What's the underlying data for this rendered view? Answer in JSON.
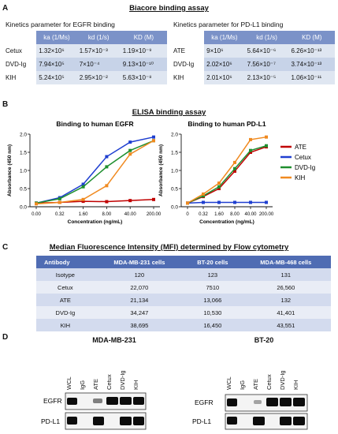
{
  "panel_a": {
    "label": "A",
    "title": "Biacore binding assay",
    "egfr_table": {
      "title": "Kinetics parameter for EGFR binding",
      "columns": [
        "ka (1/Ms)",
        "kd (1/s)",
        "KD (M)"
      ],
      "rows": [
        {
          "name": "Cetux",
          "values": [
            "1.32×10⁶",
            "1.57×10⁻³",
            "1.19×10⁻⁹"
          ]
        },
        {
          "name": "DVD-Ig",
          "values": [
            "7.94×10⁵",
            "7×10⁻⁴",
            "9.13×10⁻¹⁰"
          ]
        },
        {
          "name": "KIH",
          "values": [
            "5.24×10⁵",
            "2.95×10⁻²",
            "5.63×10⁻⁸"
          ]
        }
      ]
    },
    "pdl1_table": {
      "title": "Kinetics parameter for PD-L1 binding",
      "columns": [
        "ka (1/Ms)",
        "kd (1/s)",
        "KD (M)"
      ],
      "rows": [
        {
          "name": "ATE",
          "values": [
            "9×10⁶",
            "5.64×10⁻⁶",
            "6.26×10⁻¹³"
          ]
        },
        {
          "name": "DVD-Ig",
          "values": [
            "2.02×10⁶",
            "7.56×10⁻⁷",
            "3.74×10⁻¹³"
          ]
        },
        {
          "name": "KIH",
          "values": [
            "2.01×10⁶",
            "2.13×10⁻⁵",
            "1.06×10⁻¹¹"
          ]
        }
      ]
    }
  },
  "panel_b": {
    "label": "B",
    "title": "ELISA binding assay",
    "legend": [
      "ATE",
      "Cetux",
      "DVD-Ig",
      "KIH"
    ]
  },
  "chart_data": [
    {
      "type": "line",
      "title": "Binding to human EGFR",
      "xlabel": "Concentration (ng/mL)",
      "ylabel": "Absorbance (450 nm)",
      "categories": [
        "0.00",
        "0.32",
        "1.60",
        "8.00",
        "40.00",
        "200.00"
      ],
      "ylim": [
        0.0,
        2.0
      ],
      "yticks": [
        "0.0",
        "0.5",
        "1.0",
        "1.5",
        "2.0"
      ],
      "series": [
        {
          "name": "ATE",
          "color": "#c00000",
          "values": [
            0.1,
            0.12,
            0.15,
            0.14,
            0.17,
            0.2
          ]
        },
        {
          "name": "Cetux",
          "color": "#1f3fd0",
          "values": [
            0.1,
            0.25,
            0.62,
            1.38,
            1.78,
            1.92
          ]
        },
        {
          "name": "DVD-Ig",
          "color": "#1f8f2f",
          "values": [
            0.1,
            0.22,
            0.55,
            1.1,
            1.55,
            1.82
          ]
        },
        {
          "name": "KIH",
          "color": "#f08a20",
          "values": [
            0.08,
            0.12,
            0.2,
            0.58,
            1.45,
            1.82
          ]
        }
      ]
    },
    {
      "type": "line",
      "title": "Binding to human PD-L1",
      "xlabel": "Concentration (ng/mL)",
      "ylabel": "Absorbance (450 nm)",
      "categories": [
        "0",
        "0.32",
        "1.60",
        "8.00",
        "40.00",
        "200.00"
      ],
      "ylim": [
        0.0,
        2.0
      ],
      "yticks": [
        "0.0",
        "0.5",
        "1.0",
        "1.5",
        "2.0"
      ],
      "series": [
        {
          "name": "ATE",
          "color": "#c00000",
          "values": [
            0.1,
            0.28,
            0.5,
            0.98,
            1.5,
            1.65
          ]
        },
        {
          "name": "Cetux",
          "color": "#1f3fd0",
          "values": [
            0.1,
            0.12,
            0.12,
            0.12,
            0.12,
            0.12
          ]
        },
        {
          "name": "DVD-Ig",
          "color": "#1f8f2f",
          "values": [
            0.1,
            0.3,
            0.55,
            1.05,
            1.55,
            1.68
          ]
        },
        {
          "name": "KIH",
          "color": "#f08a20",
          "values": [
            0.1,
            0.35,
            0.65,
            1.22,
            1.85,
            1.92
          ]
        }
      ]
    }
  ],
  "panel_c": {
    "label": "C",
    "title": "Median Fluorescence Intensity (MFI) determined by Flow cytometry",
    "columns": [
      "Antibody",
      "MDA-MB-231 cells",
      "BT-20 cells",
      "MDA-MB-468 cells"
    ],
    "rows": [
      [
        "Isotype",
        "120",
        "123",
        "131"
      ],
      [
        "Cetux",
        "22,070",
        "7510",
        "26,560"
      ],
      [
        "ATE",
        "21,134",
        "13,066",
        "132"
      ],
      [
        "DVD-Ig",
        "34,247",
        "10,530",
        "41,401"
      ],
      [
        "KIH",
        "38,695",
        "16,450",
        "43,551"
      ]
    ]
  },
  "panel_d": {
    "label": "D",
    "blots": [
      {
        "title": "MDA-MB-231",
        "lanes": [
          "WCL",
          "IgG",
          "ATE",
          "Cetux",
          "DVD-Ig",
          "KIH"
        ],
        "rows": [
          "EGFR",
          "PD-L1"
        ]
      },
      {
        "title": "BT-20",
        "lanes": [
          "WCL",
          "IgG",
          "ATE",
          "Cetux",
          "DVD-Ig",
          "KIH"
        ],
        "rows": [
          "EGFR",
          "PD-L1"
        ]
      }
    ]
  }
}
